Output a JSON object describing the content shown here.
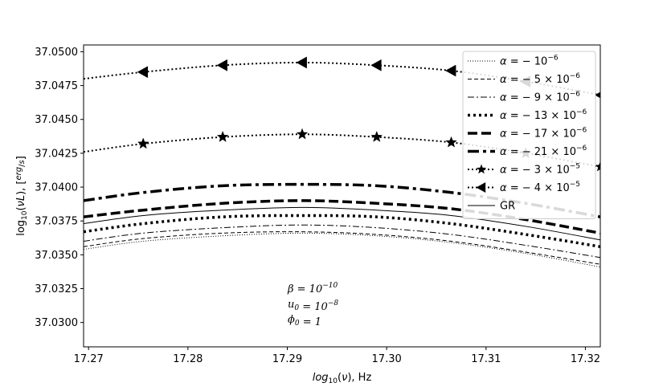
{
  "chart_data": {
    "type": "line",
    "xlabel": "log10(ν),  Hz",
    "ylabel": "log10(νL),  [erg/s]",
    "xlim": [
      17.2695,
      17.3215
    ],
    "ylim": [
      37.0282,
      37.0505
    ],
    "xticks": [
      "17.27",
      "17.28",
      "17.29",
      "17.30",
      "17.31",
      "17.32"
    ],
    "yticks": [
      "37.0300",
      "37.0325",
      "37.0350",
      "37.0375",
      "37.0400",
      "37.0425",
      "37.0450",
      "37.0475",
      "37.0500"
    ],
    "grid": false,
    "legend_position": "top-right",
    "x": [
      17.2695,
      17.2755,
      17.2835,
      17.2915,
      17.299,
      17.3065,
      17.314,
      17.3215
    ],
    "series": [
      {
        "name": "α = − 10⁻⁶",
        "style": "dotted-thin",
        "values": [
          37.0354,
          37.036,
          37.0364,
          37.0366,
          37.0364,
          37.0359,
          37.0351,
          37.0341
        ]
      },
      {
        "name": "α = − 5 × 10⁻⁶",
        "style": "dashed-thin",
        "values": [
          37.0356,
          37.0362,
          37.0366,
          37.0367,
          37.0365,
          37.036,
          37.0352,
          37.0343
        ]
      },
      {
        "name": "α = − 9 × 10⁻⁶",
        "style": "dashdot-thin",
        "values": [
          37.036,
          37.0366,
          37.037,
          37.0372,
          37.037,
          37.0365,
          37.0357,
          37.0348
        ]
      },
      {
        "name": "α = − 13 × 10⁻⁶",
        "style": "dotted-thick",
        "values": [
          37.0367,
          37.0373,
          37.0378,
          37.0379,
          37.0378,
          37.0373,
          37.0365,
          37.0356
        ]
      },
      {
        "name": "α = − 17 × 10⁻⁶",
        "style": "dashed-thick",
        "values": [
          37.0378,
          37.0383,
          37.0388,
          37.039,
          37.0388,
          37.0384,
          37.0376,
          37.0366
        ]
      },
      {
        "name": "α = − 21 × 10⁻⁶",
        "style": "dashdot-thick",
        "values": [
          37.039,
          37.0396,
          37.0401,
          37.0402,
          37.0401,
          37.0396,
          37.0388,
          37.0378
        ]
      },
      {
        "name": "α = − 3 × 10⁻⁵",
        "style": "dotted-star",
        "values": [
          37.0426,
          37.0432,
          37.0437,
          37.0439,
          37.0437,
          37.0433,
          37.0425,
          37.0415
        ]
      },
      {
        "name": "α = − 4 × 10⁻⁵",
        "style": "dotted-triangle",
        "values": [
          37.048,
          37.0485,
          37.049,
          37.0492,
          37.049,
          37.0486,
          37.0478,
          37.0468
        ]
      },
      {
        "name": "GR",
        "style": "solid-thin",
        "values": [
          37.0373,
          37.0379,
          37.0383,
          37.0385,
          37.0383,
          37.0379,
          37.0371,
          37.0361
        ]
      }
    ],
    "annotations": [
      "β = 10⁻¹⁰",
      "u₀ = 10⁻⁸",
      "ϕ₀ = 1"
    ]
  }
}
